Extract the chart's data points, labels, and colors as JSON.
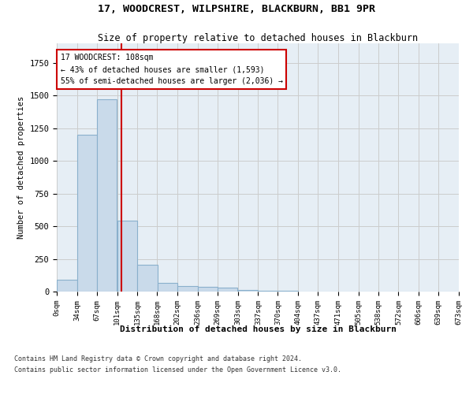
{
  "title": "17, WOODCREST, WILPSHIRE, BLACKBURN, BB1 9PR",
  "subtitle": "Size of property relative to detached houses in Blackburn",
  "xlabel": "Distribution of detached houses by size in Blackburn",
  "ylabel": "Number of detached properties",
  "footer_line1": "Contains HM Land Registry data © Crown copyright and database right 2024.",
  "footer_line2": "Contains public sector information licensed under the Open Government Licence v3.0.",
  "bar_edges": [
    0,
    34,
    67,
    101,
    135,
    168,
    202,
    236,
    269,
    303,
    337,
    370,
    404,
    437,
    471,
    505,
    538,
    572,
    606,
    639,
    673
  ],
  "bar_values": [
    90,
    1200,
    1470,
    540,
    205,
    65,
    45,
    35,
    28,
    10,
    8,
    5,
    3,
    2,
    1,
    1,
    0,
    0,
    0,
    0
  ],
  "bar_color": "#c9daea",
  "bar_edge_color": "#8ab0cc",
  "grid_color": "#cccccc",
  "bg_color": "#e6eef5",
  "vline_color": "#cc0000",
  "vline_x": 108,
  "annotation_text": "17 WOODCREST: 108sqm\n← 43% of detached houses are smaller (1,593)\n55% of semi-detached houses are larger (2,036) →",
  "annotation_box_color": "#ffffff",
  "annotation_box_edge": "#cc0000",
  "ylim": [
    0,
    1900
  ],
  "xlim": [
    0,
    673
  ]
}
